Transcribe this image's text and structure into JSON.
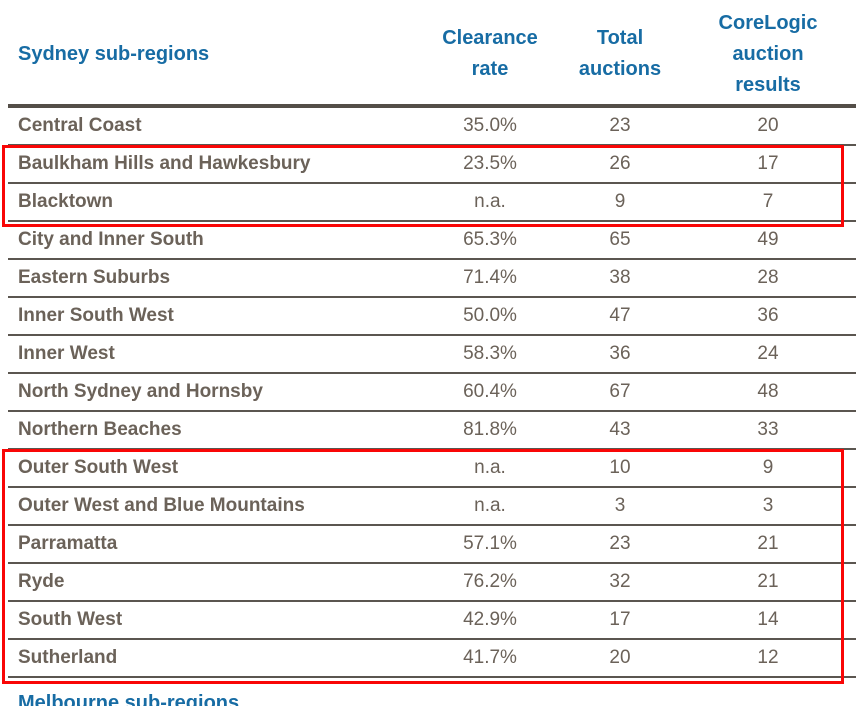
{
  "table": {
    "title_column_header": "Sydney sub-regions",
    "columns": [
      {
        "label": "Sydney sub-regions"
      },
      {
        "label": "Clearance\nrate"
      },
      {
        "label": "Total\nauctions"
      },
      {
        "label": "CoreLogic\nauction\nresults"
      }
    ],
    "rows": [
      {
        "region": "Central Coast",
        "clearance_rate": "35.0%",
        "total_auctions": "23",
        "corelogic_results": "20"
      },
      {
        "region": "Baulkham Hills and Hawkesbury",
        "clearance_rate": "23.5%",
        "total_auctions": "26",
        "corelogic_results": "17"
      },
      {
        "region": "Blacktown",
        "clearance_rate": "n.a.",
        "total_auctions": "9",
        "corelogic_results": "7"
      },
      {
        "region": "City and Inner South",
        "clearance_rate": "65.3%",
        "total_auctions": "65",
        "corelogic_results": "49"
      },
      {
        "region": "Eastern Suburbs",
        "clearance_rate": "71.4%",
        "total_auctions": "38",
        "corelogic_results": "28"
      },
      {
        "region": "Inner South West",
        "clearance_rate": "50.0%",
        "total_auctions": "47",
        "corelogic_results": "36"
      },
      {
        "region": "Inner West",
        "clearance_rate": "58.3%",
        "total_auctions": "36",
        "corelogic_results": "24"
      },
      {
        "region": "North Sydney and Hornsby",
        "clearance_rate": "60.4%",
        "total_auctions": "67",
        "corelogic_results": "48"
      },
      {
        "region": "Northern Beaches",
        "clearance_rate": "81.8%",
        "total_auctions": "43",
        "corelogic_results": "33"
      },
      {
        "region": "Outer South West",
        "clearance_rate": "n.a.",
        "total_auctions": "10",
        "corelogic_results": "9"
      },
      {
        "region": "Outer West and Blue Mountains",
        "clearance_rate": "n.a.",
        "total_auctions": "3",
        "corelogic_results": "3"
      },
      {
        "region": "Parramatta",
        "clearance_rate": "57.1%",
        "total_auctions": "23",
        "corelogic_results": "21"
      },
      {
        "region": "Ryde",
        "clearance_rate": "76.2%",
        "total_auctions": "32",
        "corelogic_results": "21"
      },
      {
        "region": "South West",
        "clearance_rate": "42.9%",
        "total_auctions": "17",
        "corelogic_results": "14"
      },
      {
        "region": "Sutherland",
        "clearance_rate": "41.7%",
        "total_auctions": "20",
        "corelogic_results": "12"
      }
    ],
    "highlight_groups": [
      {
        "rows": [
          "Baulkham Hills and Hawkesbury",
          "Blacktown"
        ]
      },
      {
        "rows": [
          "Outer South West",
          "Outer West and Blue Mountains",
          "Parramatta",
          "Ryde",
          "South West",
          "Sutherland"
        ]
      }
    ]
  },
  "footer": {
    "next_section_label": "Melbourne sub-regions"
  },
  "colors": {
    "header_text": "#176CA4",
    "body_text": "#6B6259",
    "highlight_border": "#F90606",
    "row_separator": "#5B5650",
    "header_rule": "#544E48",
    "background": "#FFFFFF"
  }
}
